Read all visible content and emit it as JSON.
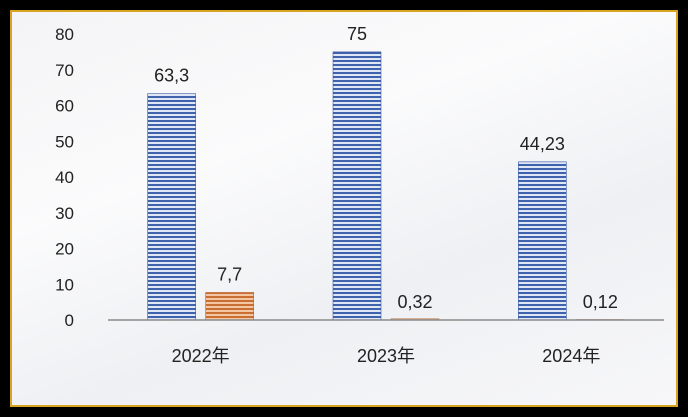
{
  "chart_data": {
    "type": "bar",
    "categories": [
      "2022年",
      "2023年",
      "2024年"
    ],
    "series": [
      {
        "values": [
          63.3,
          75,
          44.23
        ],
        "labels": [
          "63,3",
          "75",
          "44,23"
        ],
        "color": "#4a6fb8"
      },
      {
        "values": [
          7.7,
          0.32,
          0.12
        ],
        "labels": [
          "7,7",
          "0,32",
          "0,12"
        ],
        "color": "#d9864a"
      }
    ],
    "yticks": [
      "0",
      "10",
      "20",
      "30",
      "40",
      "50",
      "60",
      "70",
      "80"
    ],
    "ylim": [
      0,
      80
    ],
    "title": "",
    "xlabel": "",
    "ylabel": "",
    "grid": false,
    "frame_color": "#d9a521"
  }
}
